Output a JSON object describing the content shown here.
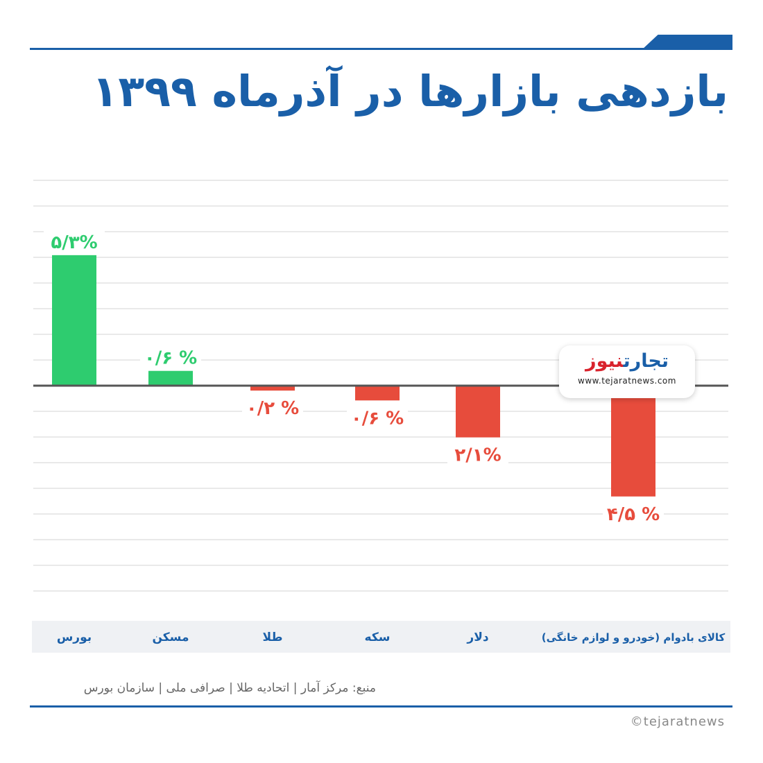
{
  "title": "بازدهی بازارها در آذرماه ۱۳۹۹",
  "colors": {
    "accent": "#1a5fa8",
    "positive": "#2ecc6f",
    "negative": "#e74c3c",
    "grid": "#e2e2e2",
    "axis": "#555555"
  },
  "chart_data": {
    "type": "bar",
    "categories": [
      "بورس",
      "مسکن",
      "طلا",
      "سکه",
      "دلار",
      "کالای بادوام (خودرو و لوازم خانگی)"
    ],
    "values": [
      5.3,
      0.6,
      -0.2,
      -0.6,
      -2.1,
      -4.5
    ],
    "labels": [
      "۵/۳%",
      "۰/۶ %",
      "۰/۲ %",
      "۰/۶ %",
      "۲/۱%",
      "۴/۵ %"
    ],
    "ylim": [
      -8.0,
      7.0
    ],
    "grid": true
  },
  "logo": {
    "name_red": "نیوز",
    "name_blue": "تجارت",
    "url": "www.tejaratnews.com"
  },
  "source": "منبع: مرکز آمار | اتحادیه طلا | صرافی ملی | سازمان بورس",
  "credit": "©tejaratnews"
}
